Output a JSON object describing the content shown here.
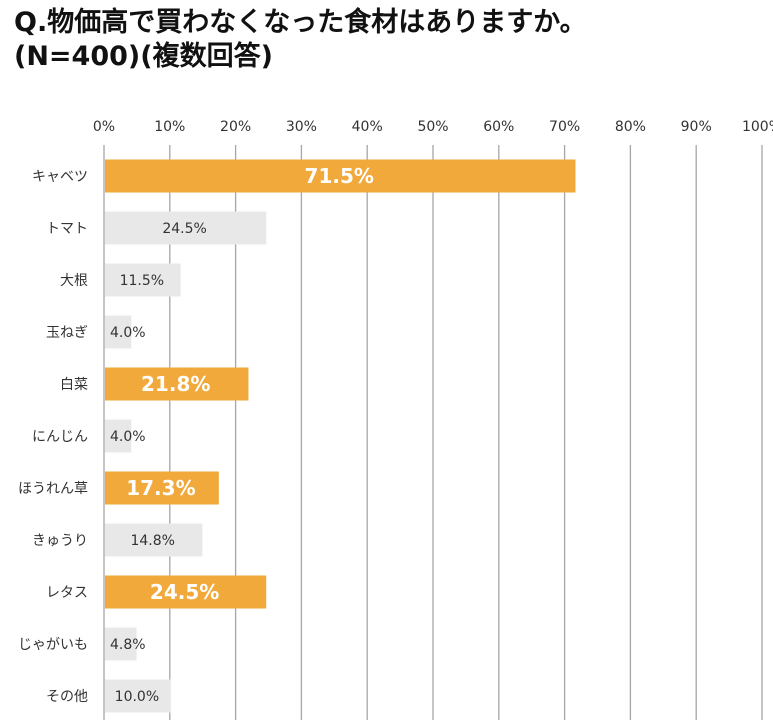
{
  "title_line1": "Q.物価高で買わなくなった食材はありますか。",
  "title_line2": "(N=400)(複数回答)",
  "colors": {
    "highlight": "#F2A93B",
    "normal": "#E8E8E8",
    "grid": "#A6A6A6",
    "text": "#333333"
  },
  "chart_data": {
    "type": "bar",
    "orientation": "horizontal",
    "title": "Q.物価高で買わなくなった食材はありますか。(N=400)(複数回答)",
    "categories": [
      "キャベツ",
      "トマト",
      "大根",
      "玉ねぎ",
      "白菜",
      "にんじん",
      "ほうれん草",
      "きゅうり",
      "レタス",
      "じゃがいも",
      "その他"
    ],
    "values": [
      71.5,
      24.5,
      11.5,
      4.0,
      21.8,
      4.0,
      17.3,
      14.8,
      24.5,
      4.8,
      10.0
    ],
    "value_labels": [
      "71.5%",
      "24.5%",
      "11.5%",
      "4.0%",
      "21.8%",
      "4.0%",
      "17.3%",
      "14.8%",
      "24.5%",
      "4.8%",
      "10.0%"
    ],
    "highlighted": [
      true,
      false,
      false,
      false,
      true,
      false,
      true,
      false,
      true,
      false,
      false
    ],
    "x_ticks": [
      "0%",
      "10%",
      "20%",
      "30%",
      "40%",
      "50%",
      "60%",
      "70%",
      "80%",
      "90%",
      "100%"
    ],
    "xlim": [
      0,
      100
    ],
    "grid": true,
    "xlabel": "",
    "ylabel": ""
  }
}
